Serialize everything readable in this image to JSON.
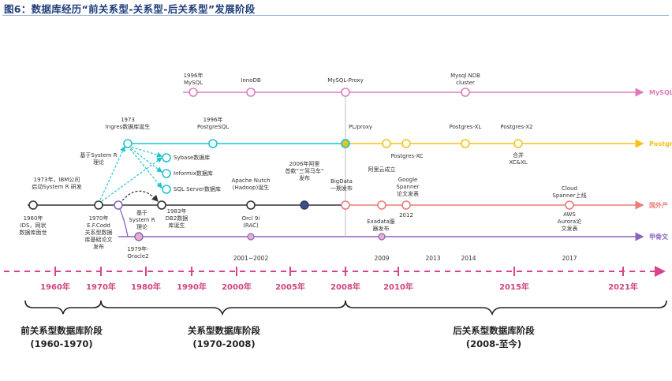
{
  "caption": "图6：数据库经历“前关系型-关系型-后关系型”发展阶段",
  "colors": {
    "mysql": "#e07bbd",
    "postgres": "#f3c21a",
    "postgres_early": "#20c4cf",
    "domestic": "#ec7b79",
    "foreign": "#333333",
    "jiagu": "#8a62c2",
    "ecosystem": "#d9428c",
    "phase": "#222222"
  },
  "tracks": {
    "mysql": "MySQL",
    "postgres": "Postgres",
    "domestic": "国外产",
    "jiagu": "甲骨文"
  },
  "nodes": {
    "mysql_1996": [
      "1996年",
      "MySQL"
    ],
    "innodb": [
      "InnoDB"
    ],
    "mysql_proxy": [
      "MySQL-Proxy"
    ],
    "mysql_ndb": [
      "Mysql NDB",
      "cluster"
    ],
    "ingres": [
      "1973",
      "Ingres数据库诞生"
    ],
    "postgresql": [
      "1996年",
      "PostgreSQL"
    ],
    "pl_proxy": [
      "PL/proxy"
    ],
    "postgres_xc": [
      "Postgres-XC"
    ],
    "postgres_xl": [
      "Postgres-XL"
    ],
    "postgres_x2": [
      "Postgres-X2"
    ],
    "merge": [
      "合并",
      "XC&XL"
    ],
    "sybase": [
      "Sybase数据库"
    ],
    "informix": [
      "Informix数据库"
    ],
    "sqlserver": [
      "SQL Server数据库"
    ],
    "system_r_above": [
      "基于System R",
      "理论"
    ],
    "system_r_1973": [
      "1973年，IBM公司",
      "启动System R 研发"
    ],
    "ids": [
      "1960年",
      "IDS，网状",
      "数据库面世"
    ],
    "codd": [
      "1970年",
      "E.F.Codd",
      "关系型数据",
      "库基础论文",
      "发布"
    ],
    "system_r_below": [
      "基于",
      "System R",
      "理论"
    ],
    "db2": [
      "1983年",
      "DB2数据",
      "库诞生"
    ],
    "nutch": [
      "Apache Nutch",
      "(Hadoop)诞生"
    ],
    "orcl9i": [
      "Orcl 9i",
      "(RAC)"
    ],
    "taobao": [
      "2006年阿里",
      "首款“三驾马车”",
      "发布"
    ],
    "bigdata": [
      "BigData",
      "一期发布"
    ],
    "aliyun": [
      "阿里云成立"
    ],
    "spanner": [
      "Google",
      "Spanner",
      "论文发表"
    ],
    "y2012": [
      "2012"
    ],
    "exadata": [
      "Exadata服",
      "器发布"
    ],
    "cloud_spanner": [
      "Cloud",
      "Spanner上线"
    ],
    "aurora": [
      "AWS",
      "Aurora论",
      "文发表"
    ],
    "oracle2": [
      "1979年-",
      "Oracle2"
    ]
  },
  "bottom_years": [
    "2001~2002",
    "2009",
    "2013",
    "2014",
    "2017"
  ],
  "timeline": [
    "1960年",
    "1970年",
    "1980年",
    "1990年",
    "2000年",
    "2005年",
    "2008年",
    "2010年",
    "2015年",
    "2021年"
  ],
  "phases": [
    {
      "name": "前关系型数据库阶段",
      "range": "(1960-1970)"
    },
    {
      "name": "关系型数据库阶段",
      "range": "(1970-2008)"
    },
    {
      "name": "后关系型数据库阶段",
      "range": "(2008-至今)"
    }
  ]
}
